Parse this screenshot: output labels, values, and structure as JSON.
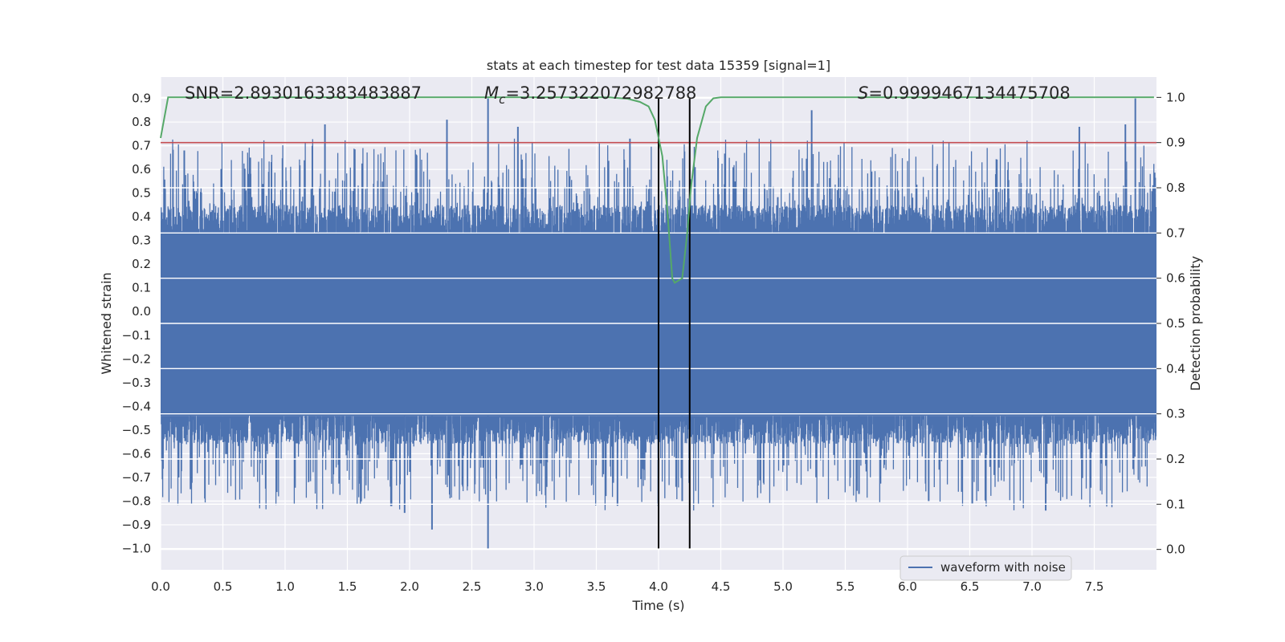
{
  "chart_data": {
    "type": "line",
    "title": "stats at each timestep for test data 15359 [signal=1]",
    "xlabel": "Time (s)",
    "ylabel": "Whitened strain",
    "y2label": "Detection probability",
    "xlim": [
      0.0,
      8.0
    ],
    "ylim": [
      -1.09,
      0.99
    ],
    "y2lim": [
      -0.045,
      1.045
    ],
    "xticks": [
      "0.0",
      "0.5",
      "1.0",
      "1.5",
      "2.0",
      "2.5",
      "3.0",
      "3.5",
      "4.0",
      "4.5",
      "5.0",
      "5.5",
      "6.0",
      "6.5",
      "7.0",
      "7.5"
    ],
    "yticks": [
      "0.9",
      "0.8",
      "0.7",
      "0.6",
      "0.5",
      "0.4",
      "0.3",
      "0.2",
      "0.1",
      "0.0",
      "−0.1",
      "−0.2",
      "−0.3",
      "−0.4",
      "−0.5",
      "−0.6",
      "−0.7",
      "−0.8",
      "−0.9",
      "−1.0"
    ],
    "y2ticks": [
      "1.0",
      "0.9",
      "0.8",
      "0.7",
      "0.6",
      "0.5",
      "0.4",
      "0.3",
      "0.2",
      "0.1",
      "0.0"
    ],
    "annotations": {
      "snr": "SNR=2.8930163383483887",
      "mc_symbol": "M",
      "mc_sub": "c",
      "mc_value": "=3.257322072982788",
      "s_symbol": "S",
      "s_value": "=0.9999467134475708"
    },
    "threshold": {
      "value": 0.9,
      "axis": "right",
      "color": "#c44e52"
    },
    "event_window": {
      "start": 4.0,
      "end": 4.25,
      "ymin": -1.0,
      "ymax": 0.9,
      "color": "#000000"
    },
    "series": [
      {
        "name": "waveform with noise",
        "axis": "left",
        "color": "#4c72b0",
        "kind": "noise",
        "core_range": [
          -0.44,
          0.33
        ],
        "seed": 15359,
        "n_samples": 8192,
        "sample_rate_hz": 1024,
        "peaks": [
          {
            "t": 0.19,
            "v": 0.68
          },
          {
            "t": 0.72,
            "v": 0.65
          },
          {
            "t": 1.32,
            "v": 0.79
          },
          {
            "t": 2.3,
            "v": 0.81
          },
          {
            "t": 2.63,
            "v": 0.9
          },
          {
            "t": 2.87,
            "v": 0.78
          },
          {
            "t": 3.77,
            "v": 0.73
          },
          {
            "t": 5.23,
            "v": 0.85
          },
          {
            "t": 7.38,
            "v": 0.78
          },
          {
            "t": 7.75,
            "v": 0.79
          },
          {
            "t": 7.83,
            "v": 0.9
          },
          {
            "t": 0.24,
            "v": -0.75
          },
          {
            "t": 1.96,
            "v": -0.85
          },
          {
            "t": 2.18,
            "v": -0.92
          },
          {
            "t": 2.63,
            "v": -1.0
          },
          {
            "t": 3.67,
            "v": -0.82
          },
          {
            "t": 4.19,
            "v": -0.8
          },
          {
            "t": 5.61,
            "v": -0.77
          },
          {
            "t": 6.17,
            "v": -0.8
          },
          {
            "t": 6.52,
            "v": -0.81
          },
          {
            "t": 7.11,
            "v": -0.84
          }
        ]
      },
      {
        "name": "detection probability",
        "axis": "right",
        "color": "#55a868",
        "kind": "line",
        "x": [
          0.0,
          0.06,
          0.2,
          3.6,
          3.75,
          3.85,
          3.92,
          3.97,
          4.03,
          4.07,
          4.11,
          4.13,
          4.19,
          4.23,
          4.26,
          4.31,
          4.38,
          4.44,
          4.5,
          7.98
        ],
        "y": [
          0.91,
          1.0,
          1.0,
          1.0,
          0.997,
          0.99,
          0.98,
          0.95,
          0.87,
          0.75,
          0.6,
          0.59,
          0.6,
          0.7,
          0.8,
          0.91,
          0.98,
          0.998,
          1.0,
          1.0
        ]
      }
    ],
    "legend": {
      "placement": "lower-right",
      "entries": [
        "waveform with noise"
      ]
    }
  }
}
